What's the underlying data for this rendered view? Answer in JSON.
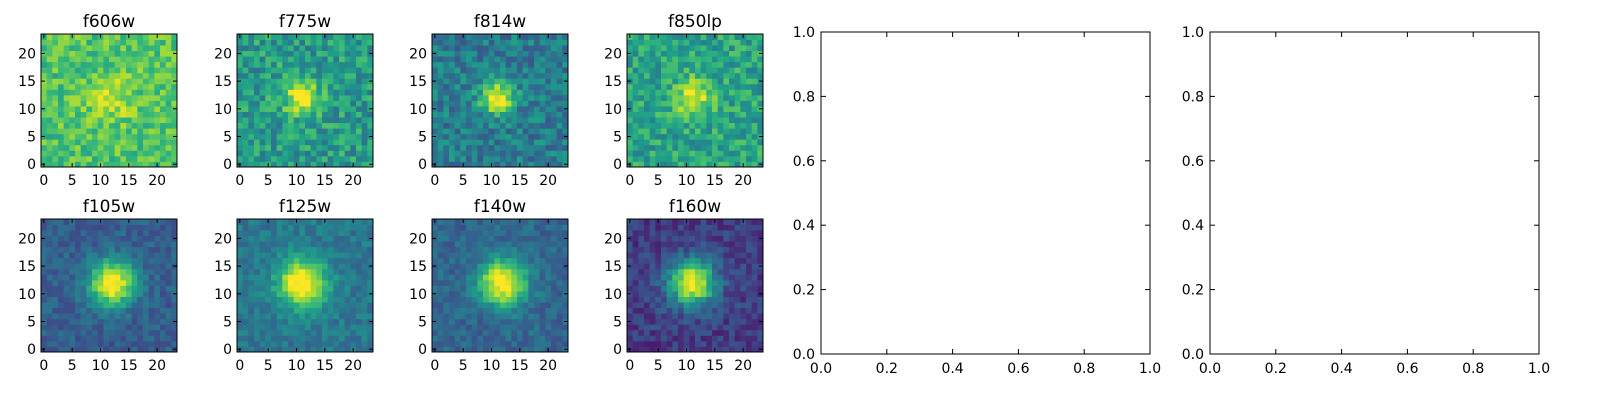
{
  "chart_data": [
    {
      "type": "heatmap",
      "title": "f606w",
      "colormap": "viridis",
      "image_size": [
        24,
        24
      ],
      "source_peak": [
        12,
        12
      ],
      "source_strength": 0.18,
      "background_level": 0.72,
      "background_noise": 0.14,
      "source_width": 3.0,
      "seed": 11,
      "xticks": [
        "0",
        "5",
        "10",
        "15",
        "20"
      ],
      "yticks": [
        "0",
        "5",
        "10",
        "15",
        "20"
      ]
    },
    {
      "type": "heatmap",
      "title": "f775w",
      "colormap": "viridis",
      "image_size": [
        24,
        24
      ],
      "source_peak": [
        11,
        12
      ],
      "source_strength": 0.45,
      "background_level": 0.55,
      "background_noise": 0.17,
      "source_width": 2.3,
      "seed": 23,
      "xticks": [
        "0",
        "5",
        "10",
        "15",
        "20"
      ],
      "yticks": [
        "0",
        "5",
        "10",
        "15",
        "20"
      ]
    },
    {
      "type": "heatmap",
      "title": "f814w",
      "colormap": "viridis",
      "image_size": [
        24,
        24
      ],
      "source_peak": [
        11,
        12
      ],
      "source_strength": 0.62,
      "background_level": 0.42,
      "background_noise": 0.15,
      "source_width": 2.0,
      "seed": 37,
      "xticks": [
        "0",
        "5",
        "10",
        "15",
        "20"
      ],
      "yticks": [
        "0",
        "5",
        "10",
        "15",
        "20"
      ]
    },
    {
      "type": "heatmap",
      "title": "f850lp",
      "colormap": "viridis",
      "image_size": [
        24,
        24
      ],
      "source_peak": [
        11,
        12
      ],
      "source_strength": 0.4,
      "background_level": 0.58,
      "background_noise": 0.16,
      "source_width": 2.3,
      "seed": 41,
      "xticks": [
        "0",
        "5",
        "10",
        "15",
        "20"
      ],
      "yticks": [
        "0",
        "5",
        "10",
        "15",
        "20"
      ]
    },
    {
      "type": "heatmap",
      "title": "f105w",
      "colormap": "viridis",
      "image_size": [
        24,
        24
      ],
      "source_peak": [
        12,
        12
      ],
      "source_strength": 0.78,
      "background_level": 0.3,
      "background_noise": 0.09,
      "source_width": 2.8,
      "seed": 53,
      "xticks": [
        "0",
        "5",
        "10",
        "15",
        "20"
      ],
      "yticks": [
        "0",
        "5",
        "10",
        "15",
        "20"
      ]
    },
    {
      "type": "heatmap",
      "title": "f125w",
      "colormap": "viridis",
      "image_size": [
        24,
        24
      ],
      "source_peak": [
        11,
        12
      ],
      "source_strength": 0.68,
      "background_level": 0.4,
      "background_noise": 0.09,
      "source_width": 3.0,
      "seed": 67,
      "xticks": [
        "0",
        "5",
        "10",
        "15",
        "20"
      ],
      "yticks": [
        "0",
        "5",
        "10",
        "15",
        "20"
      ]
    },
    {
      "type": "heatmap",
      "title": "f140w",
      "colormap": "viridis",
      "image_size": [
        24,
        24
      ],
      "source_peak": [
        12,
        12
      ],
      "source_strength": 0.74,
      "background_level": 0.33,
      "background_noise": 0.09,
      "source_width": 2.9,
      "seed": 79,
      "xticks": [
        "0",
        "5",
        "10",
        "15",
        "20"
      ],
      "yticks": [
        "0",
        "5",
        "10",
        "15",
        "20"
      ]
    },
    {
      "type": "heatmap",
      "title": "f160w",
      "colormap": "viridis",
      "image_size": [
        24,
        24
      ],
      "source_peak": [
        11,
        12
      ],
      "source_strength": 0.82,
      "background_level": 0.18,
      "background_noise": 0.1,
      "source_width": 2.9,
      "seed": 97,
      "xticks": [
        "0",
        "5",
        "10",
        "15",
        "20"
      ],
      "yticks": [
        "0",
        "5",
        "10",
        "15",
        "20"
      ]
    },
    {
      "type": "scatter",
      "title": "",
      "xlim": [
        0.0,
        1.0
      ],
      "ylim": [
        0.0,
        1.0
      ],
      "xticks": [
        "0.0",
        "0.2",
        "0.4",
        "0.6",
        "0.8",
        "1.0"
      ],
      "yticks": [
        "0.0",
        "0.2",
        "0.4",
        "0.6",
        "0.8",
        "1.0"
      ],
      "series": []
    },
    {
      "type": "scatter",
      "title": "",
      "xlim": [
        0.0,
        1.0
      ],
      "ylim": [
        0.0,
        1.0
      ],
      "xticks": [
        "0.0",
        "0.2",
        "0.4",
        "0.6",
        "0.8",
        "1.0"
      ],
      "yticks": [
        "0.0",
        "0.2",
        "0.4",
        "0.6",
        "0.8",
        "1.0"
      ],
      "series": []
    }
  ]
}
